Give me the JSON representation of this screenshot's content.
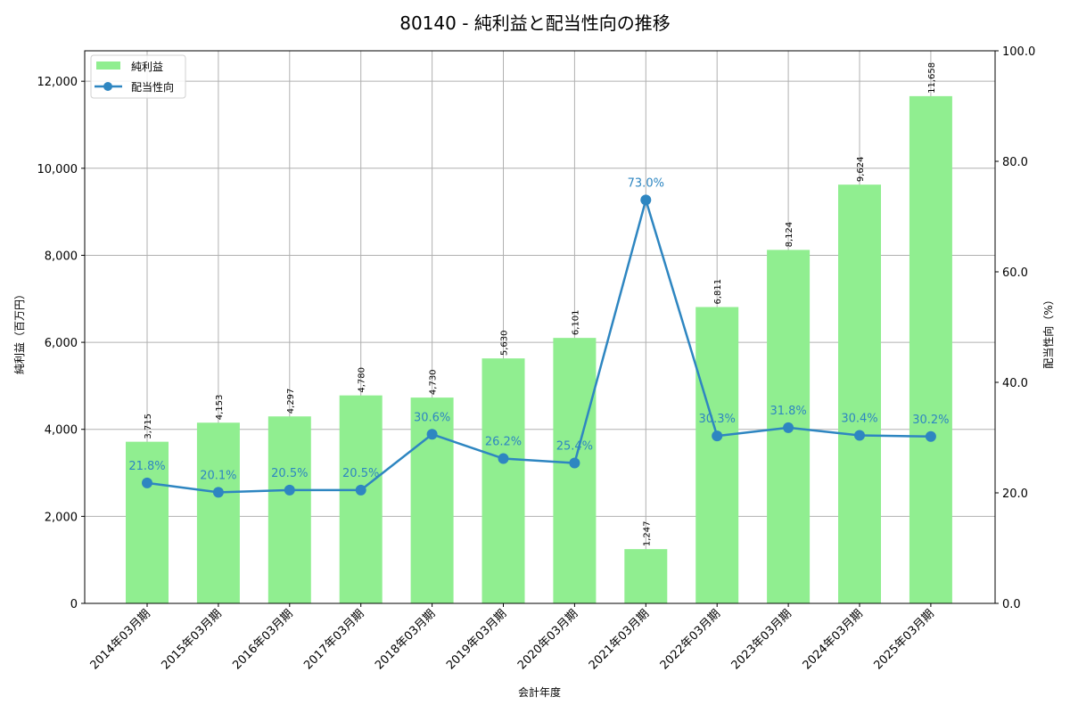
{
  "chart_data": {
    "type": "bar+line",
    "title": "80140 - 純利益と配当性向の推移",
    "xlabel": "会計年度",
    "ylabel_left": "純利益（百万円）",
    "ylabel_right": "配当性向（%）",
    "categories": [
      "2014年03月期",
      "2015年03月期",
      "2016年03月期",
      "2017年03月期",
      "2018年03月期",
      "2019年03月期",
      "2020年03月期",
      "2021年03月期",
      "2022年03月期",
      "2023年03月期",
      "2024年03月期",
      "2025年03月期"
    ],
    "series": [
      {
        "name": "純利益",
        "type": "bar",
        "axis": "left",
        "color": "#90ee90",
        "values": [
          3715,
          4153,
          4297,
          4780,
          4730,
          5630,
          6101,
          1247,
          6811,
          8124,
          9624,
          11658
        ],
        "labels": [
          "3,715",
          "4,153",
          "4,297",
          "4,780",
          "4,730",
          "5,630",
          "6,101",
          "1,247",
          "6,811",
          "8,124",
          "9,624",
          "11,658"
        ]
      },
      {
        "name": "配当性向",
        "type": "line",
        "axis": "right",
        "color": "#2e86c1",
        "values": [
          21.8,
          20.1,
          20.5,
          20.5,
          30.6,
          26.2,
          25.4,
          73.0,
          30.3,
          31.8,
          30.4,
          30.2
        ],
        "labels": [
          "21.8%",
          "20.1%",
          "20.5%",
          "20.5%",
          "30.6%",
          "26.2%",
          "25.4%",
          "73.0%",
          "30.3%",
          "31.8%",
          "30.4%",
          "30.2%"
        ]
      }
    ],
    "ylim_left": [
      0,
      12700
    ],
    "yticks_left": [
      0,
      2000,
      4000,
      6000,
      8000,
      10000,
      12000
    ],
    "ytick_labels_left": [
      "0",
      "2,000",
      "4,000",
      "6,000",
      "8,000",
      "10,000",
      "12,000"
    ],
    "ylim_right": [
      0,
      100
    ],
    "yticks_right": [
      0,
      20,
      40,
      60,
      80,
      100
    ],
    "ytick_labels_right": [
      "0.0",
      "20.0",
      "40.0",
      "60.0",
      "80.0",
      "100.0"
    ],
    "grid": true,
    "legend_position": "upper left",
    "legend": [
      "純利益",
      "配当性向"
    ]
  }
}
